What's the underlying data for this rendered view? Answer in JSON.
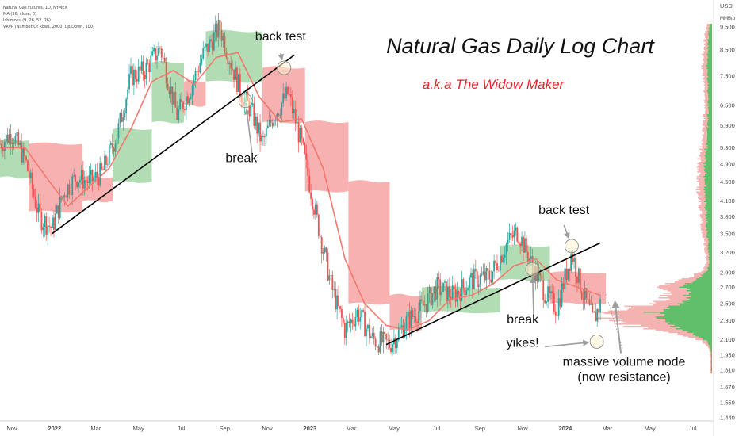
{
  "chart_data": {
    "type": "candlestick",
    "symbol": "Natural Gas Futures, 1D, NYMEX",
    "indicators": [
      "MA (36, close, 0)",
      "Ichimoku (9, 26, 52, 26)",
      "VRVP (Number Of Rows, 2000, Up/Down, 100)"
    ],
    "title": "Natural Gas Daily Log Chart",
    "subtitle": "a.k.a The Widow Maker",
    "currency": "USD",
    "unit": "MMBtu",
    "y_scale": "log",
    "ylim": [
      1.4,
      9.9
    ],
    "x_range": [
      "2021-10-15",
      "2024-07-31"
    ],
    "y_ticks": [
      9.5,
      8.5,
      7.5,
      6.5,
      5.9,
      5.3,
      4.9,
      4.5,
      4.1,
      3.8,
      3.5,
      3.2,
      2.9,
      2.7,
      2.5,
      2.3,
      2.1,
      1.95,
      1.81,
      1.67,
      1.55,
      1.44
    ],
    "y_tick_labels": [
      "9.500",
      "8.500",
      "7.500",
      "6.500",
      "5.900",
      "5.300",
      "4.900",
      "4.500",
      "4.100",
      "3.800",
      "3.500",
      "3.200",
      "2.900",
      "2.700",
      "2.500",
      "2.300",
      "2.100",
      "1.950",
      "1.810",
      "1.670",
      "1.550",
      "1.440"
    ],
    "x_ticks": [
      {
        "date": "2021-11-01",
        "label": "Nov"
      },
      {
        "date": "2022-01-01",
        "label": "2022"
      },
      {
        "date": "2022-03-01",
        "label": "Mar"
      },
      {
        "date": "2022-05-01",
        "label": "May"
      },
      {
        "date": "2022-07-01",
        "label": "Jul"
      },
      {
        "date": "2022-09-01",
        "label": "Sep"
      },
      {
        "date": "2022-11-01",
        "label": "Nov"
      },
      {
        "date": "2023-01-01",
        "label": "2023"
      },
      {
        "date": "2023-03-01",
        "label": "Mar"
      },
      {
        "date": "2023-05-01",
        "label": "May"
      },
      {
        "date": "2023-07-01",
        "label": "Jul"
      },
      {
        "date": "2023-09-01",
        "label": "Sep"
      },
      {
        "date": "2023-11-01",
        "label": "Nov"
      },
      {
        "date": "2024-01-01",
        "label": "2024"
      },
      {
        "date": "2024-03-01",
        "label": "Mar"
      },
      {
        "date": "2024-05-01",
        "label": "May"
      },
      {
        "date": "2024-07-01",
        "label": "Jul"
      }
    ],
    "price_path": [
      {
        "date": "2021-10-15",
        "price": 5.4
      },
      {
        "date": "2021-11-01",
        "price": 5.7
      },
      {
        "date": "2021-11-20",
        "price": 5.0
      },
      {
        "date": "2021-12-10",
        "price": 3.8
      },
      {
        "date": "2021-12-28",
        "price": 3.6
      },
      {
        "date": "2022-01-15",
        "price": 4.3
      },
      {
        "date": "2022-02-01",
        "price": 4.6
      },
      {
        "date": "2022-02-20",
        "price": 4.5
      },
      {
        "date": "2022-03-10",
        "price": 4.7
      },
      {
        "date": "2022-04-01",
        "price": 5.7
      },
      {
        "date": "2022-04-20",
        "price": 7.5
      },
      {
        "date": "2022-05-10",
        "price": 7.7
      },
      {
        "date": "2022-06-01",
        "price": 8.6
      },
      {
        "date": "2022-06-25",
        "price": 6.2
      },
      {
        "date": "2022-07-15",
        "price": 7.1
      },
      {
        "date": "2022-08-01",
        "price": 8.3
      },
      {
        "date": "2022-08-25",
        "price": 9.5
      },
      {
        "date": "2022-09-10",
        "price": 8.0
      },
      {
        "date": "2022-09-25",
        "price": 6.9
      },
      {
        "date": "2022-10-10",
        "price": 6.3
      },
      {
        "date": "2022-10-25",
        "price": 5.4
      },
      {
        "date": "2022-11-10",
        "price": 6.2
      },
      {
        "date": "2022-12-01",
        "price": 6.9
      },
      {
        "date": "2022-12-20",
        "price": 5.4
      },
      {
        "date": "2023-01-10",
        "price": 3.8
      },
      {
        "date": "2023-02-01",
        "price": 2.7
      },
      {
        "date": "2023-02-20",
        "price": 2.2
      },
      {
        "date": "2023-03-10",
        "price": 2.4
      },
      {
        "date": "2023-04-01",
        "price": 2.1
      },
      {
        "date": "2023-04-25",
        "price": 2.05
      },
      {
        "date": "2023-05-20",
        "price": 2.3
      },
      {
        "date": "2023-06-10",
        "price": 2.45
      },
      {
        "date": "2023-07-01",
        "price": 2.7
      },
      {
        "date": "2023-07-25",
        "price": 2.6
      },
      {
        "date": "2023-08-20",
        "price": 2.8
      },
      {
        "date": "2023-09-15",
        "price": 2.85
      },
      {
        "date": "2023-10-10",
        "price": 3.35
      },
      {
        "date": "2023-10-25",
        "price": 3.55
      },
      {
        "date": "2023-11-15",
        "price": 3.0
      },
      {
        "date": "2023-12-05",
        "price": 2.6
      },
      {
        "date": "2023-12-20",
        "price": 2.45
      },
      {
        "date": "2024-01-10",
        "price": 3.2
      },
      {
        "date": "2024-01-25",
        "price": 2.65
      },
      {
        "date": "2024-02-10",
        "price": 2.3
      },
      {
        "date": "2024-02-20",
        "price": 2.5
      }
    ],
    "moving_average": [
      {
        "date": "2021-10-15",
        "value": 5.3
      },
      {
        "date": "2021-11-20",
        "value": 5.3
      },
      {
        "date": "2021-12-20",
        "value": 4.6
      },
      {
        "date": "2022-01-20",
        "value": 4.0
      },
      {
        "date": "2022-02-20",
        "value": 4.4
      },
      {
        "date": "2022-03-20",
        "value": 4.8
      },
      {
        "date": "2022-04-20",
        "value": 5.8
      },
      {
        "date": "2022-05-20",
        "value": 7.3
      },
      {
        "date": "2022-06-20",
        "value": 7.7
      },
      {
        "date": "2022-07-20",
        "value": 7.2
      },
      {
        "date": "2022-08-20",
        "value": 8.2
      },
      {
        "date": "2022-09-20",
        "value": 8.4
      },
      {
        "date": "2022-10-20",
        "value": 6.8
      },
      {
        "date": "2022-11-20",
        "value": 6.0
      },
      {
        "date": "2022-12-20",
        "value": 6.1
      },
      {
        "date": "2023-01-20",
        "value": 4.8
      },
      {
        "date": "2023-02-20",
        "value": 3.1
      },
      {
        "date": "2023-03-20",
        "value": 2.5
      },
      {
        "date": "2023-04-20",
        "value": 2.25
      },
      {
        "date": "2023-05-20",
        "value": 2.2
      },
      {
        "date": "2023-06-20",
        "value": 2.3
      },
      {
        "date": "2023-07-20",
        "value": 2.55
      },
      {
        "date": "2023-08-20",
        "value": 2.6
      },
      {
        "date": "2023-09-20",
        "value": 2.75
      },
      {
        "date": "2023-10-20",
        "value": 3.0
      },
      {
        "date": "2023-11-20",
        "value": 3.1
      },
      {
        "date": "2023-12-20",
        "value": 2.8
      },
      {
        "date": "2024-01-20",
        "value": 2.7
      },
      {
        "date": "2024-02-20",
        "value": 2.6
      }
    ],
    "cloud_segments": [
      {
        "start": "2021-10-15",
        "end": "2021-11-25",
        "high": 5.5,
        "low": 4.6,
        "trend": "bullish"
      },
      {
        "start": "2021-11-25",
        "end": "2022-02-10",
        "high": 5.4,
        "low": 3.9,
        "trend": "bearish"
      },
      {
        "start": "2022-02-10",
        "end": "2022-03-25",
        "high": 4.6,
        "low": 4.1,
        "trend": "bearish"
      },
      {
        "start": "2022-03-25",
        "end": "2022-05-20",
        "high": 5.8,
        "low": 4.5,
        "trend": "bullish"
      },
      {
        "start": "2022-05-20",
        "end": "2022-07-05",
        "high": 8.0,
        "low": 6.0,
        "trend": "bullish"
      },
      {
        "start": "2022-07-05",
        "end": "2022-08-05",
        "high": 7.3,
        "low": 6.5,
        "trend": "bearish"
      },
      {
        "start": "2022-08-05",
        "end": "2022-10-25",
        "high": 9.3,
        "low": 7.3,
        "trend": "bullish"
      },
      {
        "start": "2022-10-25",
        "end": "2022-12-25",
        "high": 7.8,
        "low": 6.0,
        "trend": "bearish"
      },
      {
        "start": "2022-12-25",
        "end": "2023-02-25",
        "high": 6.0,
        "low": 4.3,
        "trend": "bearish"
      },
      {
        "start": "2023-02-25",
        "end": "2023-04-25",
        "high": 4.5,
        "low": 2.5,
        "trend": "bearish"
      },
      {
        "start": "2023-04-25",
        "end": "2023-06-10",
        "high": 2.6,
        "low": 2.2,
        "trend": "bearish"
      },
      {
        "start": "2023-06-10",
        "end": "2023-09-30",
        "high": 2.7,
        "low": 2.4,
        "trend": "bullish"
      },
      {
        "start": "2023-09-30",
        "end": "2023-12-10",
        "high": 3.3,
        "low": 2.8,
        "trend": "bullish"
      },
      {
        "start": "2023-12-10",
        "end": "2024-02-28",
        "high": 2.9,
        "low": 2.5,
        "trend": "bearish"
      }
    ],
    "volume_profile_upper_resistance": 2.6,
    "colors": {
      "candle_up": "#26a69a",
      "candle_down": "#ef5350",
      "ma": "#f07a6e",
      "cloud_bullish": "#a5d6a7",
      "cloud_bearish": "#f7a3a3",
      "volume_up": "#5fbf6a",
      "volume_down": "#f4b3b0",
      "title": "#111111",
      "subtitle": "#e4232b"
    },
    "trendlines": [
      {
        "name": "2022 support trendline",
        "from": {
          "date": "2021-12-28",
          "price": 3.5
        },
        "to": {
          "date": "2022-12-10",
          "price": 8.3
        }
      },
      {
        "name": "2023 support trendline",
        "from": {
          "date": "2023-04-20",
          "price": 2.05
        },
        "to": {
          "date": "2024-02-20",
          "price": 3.35
        }
      }
    ],
    "annotations": [
      {
        "text": "back test",
        "date": "2022-11-20",
        "price": 8.9
      },
      {
        "text": "break",
        "date": "2022-09-25",
        "price": 4.95
      },
      {
        "text": "back test",
        "date": "2023-12-30",
        "price": 3.85
      },
      {
        "text": "break",
        "date": "2023-11-01",
        "price": 2.27
      },
      {
        "text": "yikes!",
        "date": "2023-11-01",
        "price": 2.03
      },
      {
        "text": "massive volume node",
        "date": "2024-03-25",
        "price": 1.85
      },
      {
        "text": "(now resistance)",
        "date": "2024-03-25",
        "price": 1.72
      }
    ],
    "circles": [
      {
        "date": "2022-10-01",
        "price": 6.65
      },
      {
        "date": "2022-11-25",
        "price": 7.8
      },
      {
        "date": "2023-11-15",
        "price": 2.95
      },
      {
        "date": "2024-01-10",
        "price": 3.3
      },
      {
        "date": "2024-02-15",
        "price": 2.08
      }
    ]
  }
}
